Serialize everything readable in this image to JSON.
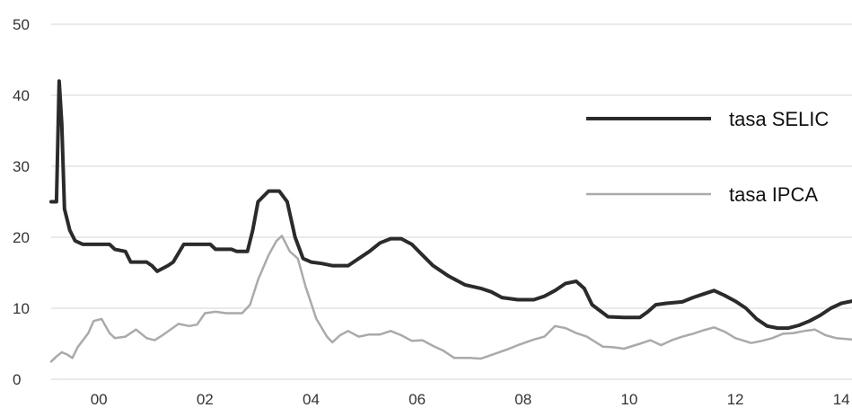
{
  "chart_data": {
    "type": "line",
    "title": "",
    "xlabel": "",
    "ylabel": "",
    "ylim": [
      0,
      50
    ],
    "xlim": [
      1999.1,
      2014.2
    ],
    "grid": true,
    "legend_position": "right",
    "yticks": [
      0,
      10,
      20,
      30,
      40,
      50
    ],
    "xticks": [
      {
        "x": 2000,
        "label": "00"
      },
      {
        "x": 2002,
        "label": "02"
      },
      {
        "x": 2004,
        "label": "04"
      },
      {
        "x": 2006,
        "label": "06"
      },
      {
        "x": 2008,
        "label": "08"
      },
      {
        "x": 2010,
        "label": "10"
      },
      {
        "x": 2012,
        "label": "12"
      },
      {
        "x": 2014,
        "label": "14"
      }
    ],
    "series": [
      {
        "name": "tasa SELIC",
        "color": "#2b2b2b",
        "points": [
          [
            1999.1,
            25
          ],
          [
            1999.2,
            25
          ],
          [
            1999.25,
            42
          ],
          [
            1999.3,
            36
          ],
          [
            1999.35,
            24
          ],
          [
            1999.45,
            21
          ],
          [
            1999.55,
            19.5
          ],
          [
            1999.7,
            19
          ],
          [
            2000.0,
            19
          ],
          [
            2000.2,
            19
          ],
          [
            2000.3,
            18.3
          ],
          [
            2000.5,
            18
          ],
          [
            2000.6,
            16.5
          ],
          [
            2000.9,
            16.5
          ],
          [
            2001.0,
            16
          ],
          [
            2001.1,
            15.2
          ],
          [
            2001.3,
            16
          ],
          [
            2001.4,
            16.5
          ],
          [
            2001.6,
            19
          ],
          [
            2001.8,
            19
          ],
          [
            2002.1,
            19
          ],
          [
            2002.2,
            18.3
          ],
          [
            2002.5,
            18.3
          ],
          [
            2002.6,
            18
          ],
          [
            2002.8,
            18
          ],
          [
            2002.9,
            21
          ],
          [
            2003.0,
            25
          ],
          [
            2003.2,
            26.5
          ],
          [
            2003.4,
            26.5
          ],
          [
            2003.55,
            25
          ],
          [
            2003.7,
            20
          ],
          [
            2003.85,
            17
          ],
          [
            2004.0,
            16.5
          ],
          [
            2004.2,
            16.3
          ],
          [
            2004.4,
            16
          ],
          [
            2004.7,
            16
          ],
          [
            2004.9,
            17
          ],
          [
            2005.1,
            18
          ],
          [
            2005.3,
            19.2
          ],
          [
            2005.5,
            19.8
          ],
          [
            2005.7,
            19.8
          ],
          [
            2005.9,
            19
          ],
          [
            2006.1,
            17.5
          ],
          [
            2006.3,
            16
          ],
          [
            2006.6,
            14.5
          ],
          [
            2006.9,
            13.3
          ],
          [
            2007.2,
            12.8
          ],
          [
            2007.4,
            12.3
          ],
          [
            2007.6,
            11.5
          ],
          [
            2007.9,
            11.2
          ],
          [
            2008.2,
            11.2
          ],
          [
            2008.4,
            11.7
          ],
          [
            2008.6,
            12.5
          ],
          [
            2008.8,
            13.5
          ],
          [
            2009.0,
            13.8
          ],
          [
            2009.15,
            12.8
          ],
          [
            2009.3,
            10.5
          ],
          [
            2009.6,
            8.8
          ],
          [
            2009.9,
            8.7
          ],
          [
            2010.2,
            8.7
          ],
          [
            2010.35,
            9.5
          ],
          [
            2010.5,
            10.5
          ],
          [
            2010.7,
            10.7
          ],
          [
            2011.0,
            10.9
          ],
          [
            2011.2,
            11.5
          ],
          [
            2011.4,
            12
          ],
          [
            2011.6,
            12.5
          ],
          [
            2011.8,
            11.8
          ],
          [
            2012.0,
            11
          ],
          [
            2012.2,
            10
          ],
          [
            2012.4,
            8.5
          ],
          [
            2012.6,
            7.5
          ],
          [
            2012.8,
            7.2
          ],
          [
            2013.0,
            7.2
          ],
          [
            2013.2,
            7.6
          ],
          [
            2013.4,
            8.2
          ],
          [
            2013.6,
            9
          ],
          [
            2013.8,
            10
          ],
          [
            2014.0,
            10.7
          ],
          [
            2014.2,
            11
          ]
        ]
      },
      {
        "name": "tasa IPCA",
        "color": "#aaaaaa",
        "points": [
          [
            1999.1,
            2.5
          ],
          [
            1999.2,
            3.2
          ],
          [
            1999.3,
            3.8
          ],
          [
            1999.4,
            3.5
          ],
          [
            1999.5,
            3
          ],
          [
            1999.6,
            4.5
          ],
          [
            1999.8,
            6.5
          ],
          [
            1999.9,
            8.2
          ],
          [
            2000.05,
            8.5
          ],
          [
            2000.2,
            6.5
          ],
          [
            2000.3,
            5.8
          ],
          [
            2000.5,
            6
          ],
          [
            2000.7,
            7
          ],
          [
            2000.9,
            5.8
          ],
          [
            2001.05,
            5.5
          ],
          [
            2001.2,
            6.2
          ],
          [
            2001.5,
            7.8
          ],
          [
            2001.7,
            7.5
          ],
          [
            2001.85,
            7.7
          ],
          [
            2002.0,
            9.3
          ],
          [
            2002.2,
            9.5
          ],
          [
            2002.4,
            9.3
          ],
          [
            2002.7,
            9.3
          ],
          [
            2002.85,
            10.5
          ],
          [
            2003.0,
            14
          ],
          [
            2003.2,
            17.5
          ],
          [
            2003.35,
            19.5
          ],
          [
            2003.45,
            20.2
          ],
          [
            2003.6,
            18
          ],
          [
            2003.75,
            17
          ],
          [
            2003.9,
            13
          ],
          [
            2004.1,
            8.5
          ],
          [
            2004.3,
            6
          ],
          [
            2004.4,
            5.2
          ],
          [
            2004.55,
            6.2
          ],
          [
            2004.7,
            6.8
          ],
          [
            2004.9,
            6
          ],
          [
            2005.1,
            6.3
          ],
          [
            2005.3,
            6.3
          ],
          [
            2005.5,
            6.8
          ],
          [
            2005.7,
            6.2
          ],
          [
            2005.9,
            5.4
          ],
          [
            2006.1,
            5.5
          ],
          [
            2006.3,
            4.7
          ],
          [
            2006.5,
            4
          ],
          [
            2006.7,
            3
          ],
          [
            2007.0,
            3
          ],
          [
            2007.2,
            2.9
          ],
          [
            2007.4,
            3.4
          ],
          [
            2007.7,
            4.2
          ],
          [
            2007.9,
            4.8
          ],
          [
            2008.2,
            5.6
          ],
          [
            2008.4,
            6
          ],
          [
            2008.6,
            7.5
          ],
          [
            2008.8,
            7.2
          ],
          [
            2009.0,
            6.5
          ],
          [
            2009.2,
            6
          ],
          [
            2009.5,
            4.6
          ],
          [
            2009.7,
            4.5
          ],
          [
            2009.9,
            4.3
          ],
          [
            2010.2,
            5
          ],
          [
            2010.4,
            5.5
          ],
          [
            2010.6,
            4.8
          ],
          [
            2010.8,
            5.5
          ],
          [
            2011.0,
            6
          ],
          [
            2011.2,
            6.4
          ],
          [
            2011.4,
            6.9
          ],
          [
            2011.6,
            7.3
          ],
          [
            2011.8,
            6.7
          ],
          [
            2012.0,
            5.8
          ],
          [
            2012.3,
            5.1
          ],
          [
            2012.5,
            5.4
          ],
          [
            2012.7,
            5.8
          ],
          [
            2012.9,
            6.4
          ],
          [
            2013.1,
            6.5
          ],
          [
            2013.3,
            6.8
          ],
          [
            2013.5,
            7
          ],
          [
            2013.7,
            6.2
          ],
          [
            2013.9,
            5.8
          ],
          [
            2014.2,
            5.6
          ]
        ]
      }
    ],
    "legend": [
      {
        "series": 0,
        "label": "tasa SELIC"
      },
      {
        "series": 1,
        "label": "tasa IPCA"
      }
    ]
  }
}
